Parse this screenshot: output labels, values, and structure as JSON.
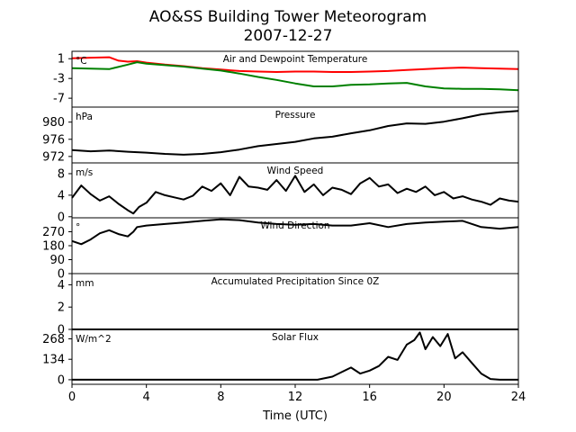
{
  "chart_data": {
    "type": "line",
    "title": "AO&SS Building Tower Meteorogram",
    "subtitle": "2007-12-27",
    "xlabel": "Time (UTC)",
    "xlim": [
      0,
      24
    ],
    "xticks": [
      0,
      4,
      8,
      12,
      16,
      20,
      24
    ],
    "colors": {
      "temperature": "#ff0000",
      "dewpoint": "#008000",
      "other": "#000000"
    },
    "panels": [
      {
        "label": "Air and Dewpoint Temperature",
        "unit": "°C",
        "ylim": [
          -8.8,
          2.5
        ],
        "yticks": [
          1,
          -3,
          -7
        ],
        "series": [
          {
            "key": "temperature",
            "x": [
              0,
              1,
              2,
              2.5,
              3,
              3.5,
              4,
              5,
              6,
              7,
              8,
              9,
              10,
              11,
              12,
              13,
              14,
              15,
              16,
              17,
              18,
              19,
              20,
              21,
              22,
              23,
              24
            ],
            "y": [
              1.1,
              1.2,
              1.3,
              0.6,
              0.4,
              0.5,
              0.2,
              -0.2,
              -0.5,
              -0.9,
              -1.2,
              -1.5,
              -1.6,
              -1.7,
              -1.6,
              -1.6,
              -1.7,
              -1.7,
              -1.6,
              -1.5,
              -1.3,
              -1.1,
              -0.9,
              -0.8,
              -0.9,
              -1.0,
              -1.1
            ]
          },
          {
            "key": "dewpoint",
            "x": [
              0,
              1,
              2,
              3,
              3.5,
              4,
              5,
              6,
              7,
              8,
              9,
              10,
              11,
              12,
              13,
              14,
              15,
              16,
              17,
              18,
              19,
              20,
              21,
              22,
              23,
              24
            ],
            "y": [
              -0.9,
              -1.0,
              -1.1,
              -0.2,
              0.3,
              0.0,
              -0.3,
              -0.6,
              -1.0,
              -1.4,
              -2.0,
              -2.7,
              -3.3,
              -4.0,
              -4.6,
              -4.6,
              -4.3,
              -4.2,
              -4.0,
              -3.9,
              -4.6,
              -5.0,
              -5.1,
              -5.1,
              -5.2,
              -5.4
            ]
          }
        ]
      },
      {
        "label": "Pressure",
        "unit": "hPa",
        "ylim": [
          970.5,
          983.5
        ],
        "yticks": [
          980,
          976,
          972
        ],
        "series": [
          {
            "key": "other",
            "x": [
              0,
              1,
              2,
              3,
              4,
              5,
              6,
              7,
              8,
              9,
              10,
              11,
              12,
              13,
              14,
              15,
              16,
              17,
              18,
              19,
              20,
              21,
              22,
              23,
              24
            ],
            "y": [
              973.5,
              973.2,
              973.4,
              973.1,
              972.9,
              972.6,
              972.4,
              972.6,
              973.0,
              973.6,
              974.4,
              974.9,
              975.4,
              976.2,
              976.6,
              977.4,
              978.1,
              979.1,
              979.7,
              979.6,
              980.1,
              980.9,
              981.8,
              982.3,
              982.6
            ]
          }
        ]
      },
      {
        "label": "Wind Speed",
        "unit": "m/s",
        "ylim": [
          -0.2,
          10
        ],
        "yticks": [
          8,
          4,
          0
        ],
        "series": [
          {
            "key": "other",
            "x": [
              0,
              0.5,
              1,
              1.5,
              2,
              2.5,
              3,
              3.3,
              3.6,
              4,
              4.5,
              5,
              5.5,
              6,
              6.5,
              7,
              7.5,
              8,
              8.5,
              9,
              9.5,
              10,
              10.5,
              11,
              11.5,
              12,
              12.5,
              13,
              13.5,
              14,
              14.5,
              15,
              15.5,
              16,
              16.5,
              17,
              17.5,
              18,
              18.5,
              19,
              19.5,
              20,
              20.5,
              21,
              21.5,
              22,
              22.5,
              23,
              23.5,
              24
            ],
            "y": [
              3.5,
              5.8,
              4.2,
              3.0,
              3.8,
              2.4,
              1.2,
              0.6,
              1.8,
              2.6,
              4.6,
              4.0,
              3.6,
              3.2,
              3.9,
              5.6,
              4.8,
              6.2,
              4.0,
              7.4,
              5.6,
              5.4,
              5.0,
              6.8,
              4.8,
              7.6,
              4.6,
              6.0,
              4.0,
              5.4,
              5.0,
              4.2,
              6.2,
              7.2,
              5.6,
              6.0,
              4.4,
              5.2,
              4.6,
              5.6,
              4.0,
              4.6,
              3.4,
              3.8,
              3.2,
              2.8,
              2.2,
              3.4,
              3.0,
              2.8
            ]
          }
        ]
      },
      {
        "label": "Wind Direction",
        "unit": "°",
        "ylim": [
          0,
          360
        ],
        "yticks": [
          270,
          180,
          90,
          0
        ],
        "series": [
          {
            "key": "other",
            "x": [
              0,
              0.5,
              1,
              1.5,
              2,
              2.5,
              3,
              3.3,
              3.5,
              4,
              5,
              6,
              7,
              8,
              9,
              10,
              11,
              12,
              13,
              14,
              15,
              16,
              17,
              18,
              19,
              20,
              21,
              22,
              23,
              24
            ],
            "y": [
              210,
              190,
              220,
              260,
              280,
              255,
              240,
              270,
              300,
              310,
              320,
              330,
              340,
              350,
              345,
              330,
              320,
              315,
              320,
              310,
              310,
              325,
              300,
              320,
              330,
              335,
              340,
              300,
              290,
              300
            ]
          }
        ]
      },
      {
        "label": "Accumulated Precipitation Since 0Z",
        "unit": "mm",
        "ylim": [
          0,
          5
        ],
        "yticks": [
          4,
          2,
          0
        ],
        "series": [
          {
            "key": "other",
            "x": [
              0,
              24
            ],
            "y": [
              0,
              0
            ]
          }
        ]
      },
      {
        "label": "Solar Flux",
        "unit": "W/m^2",
        "ylim": [
          -30,
          330
        ],
        "yticks": [
          268,
          134,
          0
        ],
        "series": [
          {
            "key": "other",
            "x": [
              0,
              13.2,
              14,
              14.5,
              15,
              15.5,
              16,
              16.5,
              17,
              17.5,
              18,
              18.4,
              18.7,
              19,
              19.4,
              19.8,
              20.2,
              20.6,
              21,
              21.5,
              22,
              22.5,
              23,
              24
            ],
            "y": [
              0,
              0,
              20,
              50,
              80,
              40,
              60,
              90,
              150,
              130,
              230,
              260,
              310,
              200,
              280,
              220,
              300,
              140,
              180,
              110,
              40,
              5,
              0,
              0
            ]
          }
        ]
      }
    ]
  }
}
